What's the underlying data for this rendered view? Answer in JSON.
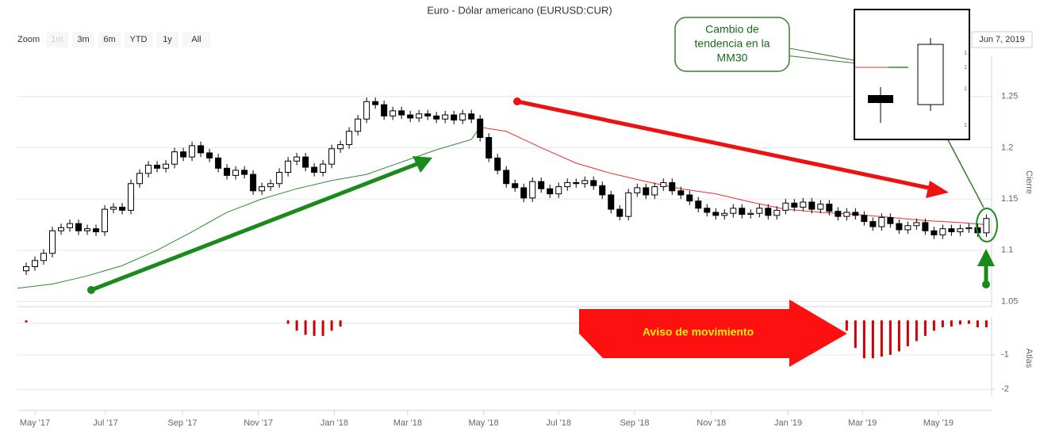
{
  "toolbar": {
    "zoom_label": "Zoom",
    "buttons": [
      "1m",
      "3m",
      "6m",
      "YTD",
      "1y",
      "All"
    ],
    "date": "Jun 7, 2019"
  },
  "chart_data": {
    "type": "candlestick",
    "title": "Euro - Dólar americano (EURUSD:CUR)",
    "y_label": "Cierre",
    "grid": true,
    "up_color": "#ffffff",
    "down_color": "#000000",
    "x": [
      -1,
      0,
      1,
      2,
      3,
      4,
      5,
      6,
      7,
      8,
      9,
      10,
      11,
      12,
      13,
      14,
      15,
      16,
      17,
      18,
      19,
      20,
      21,
      22,
      23,
      24,
      25,
      26,
      27,
      28,
      29,
      30,
      31,
      32,
      33,
      34,
      35,
      36,
      37,
      38,
      39,
      40,
      41,
      42,
      43,
      44,
      45,
      46,
      47,
      48,
      49,
      50,
      51,
      52,
      53,
      54,
      55,
      56,
      57,
      58,
      59,
      60,
      61,
      62,
      63,
      64,
      65,
      66,
      67,
      68,
      69,
      70,
      71,
      72,
      73,
      74,
      75,
      76,
      77,
      78,
      79,
      80,
      81,
      82,
      83,
      84,
      85,
      86,
      87,
      88,
      89,
      90,
      91,
      92,
      93,
      94,
      95,
      96,
      97,
      98,
      99,
      100,
      101,
      102,
      103,
      104,
      105,
      106,
      107,
      108,
      109
    ],
    "open": [
      1.08,
      1.084,
      1.09,
      1.097,
      1.119,
      1.122,
      1.126,
      1.119,
      1.121,
      1.118,
      1.14,
      1.142,
      1.139,
      1.165,
      1.175,
      1.183,
      1.18,
      1.184,
      1.196,
      1.191,
      1.202,
      1.195,
      1.19,
      1.18,
      1.173,
      1.178,
      1.174,
      1.158,
      1.162,
      1.165,
      1.176,
      1.187,
      1.191,
      1.181,
      1.176,
      1.184,
      1.199,
      1.203,
      1.216,
      1.228,
      1.245,
      1.242,
      1.231,
      1.236,
      1.232,
      1.229,
      1.233,
      1.231,
      1.228,
      1.232,
      1.227,
      1.233,
      1.228,
      1.21,
      1.19,
      1.178,
      1.165,
      1.161,
      1.151,
      1.167,
      1.16,
      1.155,
      1.162,
      1.166,
      1.165,
      1.168,
      1.163,
      1.154,
      1.14,
      1.133,
      1.156,
      1.161,
      1.154,
      1.162,
      1.166,
      1.158,
      1.154,
      1.148,
      1.141,
      1.137,
      1.134,
      1.136,
      1.141,
      1.135,
      1.136,
      1.141,
      1.134,
      1.139,
      1.146,
      1.142,
      1.147,
      1.14,
      1.145,
      1.138,
      1.133,
      1.137,
      1.134,
      1.128,
      1.123,
      1.132,
      1.126,
      1.12,
      1.124,
      1.127,
      1.119,
      1.115,
      1.121,
      1.118,
      1.121,
      1.122,
      1.117
    ],
    "high": [
      1.088,
      1.094,
      1.101,
      1.123,
      1.126,
      1.13,
      1.13,
      1.125,
      1.125,
      1.144,
      1.146,
      1.146,
      1.169,
      1.179,
      1.187,
      1.187,
      1.188,
      1.2,
      1.2,
      1.206,
      1.206,
      1.199,
      1.194,
      1.184,
      1.182,
      1.182,
      1.178,
      1.166,
      1.169,
      1.18,
      1.191,
      1.195,
      1.195,
      1.185,
      1.188,
      1.203,
      1.207,
      1.22,
      1.232,
      1.249,
      1.249,
      1.246,
      1.24,
      1.24,
      1.236,
      1.237,
      1.237,
      1.235,
      1.236,
      1.236,
      1.237,
      1.237,
      1.232,
      1.214,
      1.194,
      1.182,
      1.169,
      1.165,
      1.171,
      1.171,
      1.164,
      1.166,
      1.17,
      1.17,
      1.172,
      1.172,
      1.167,
      1.158,
      1.144,
      1.16,
      1.165,
      1.165,
      1.166,
      1.17,
      1.17,
      1.162,
      1.158,
      1.152,
      1.145,
      1.141,
      1.14,
      1.145,
      1.145,
      1.14,
      1.145,
      1.145,
      1.143,
      1.15,
      1.15,
      1.151,
      1.151,
      1.149,
      1.149,
      1.142,
      1.141,
      1.141,
      1.138,
      1.132,
      1.136,
      1.136,
      1.13,
      1.128,
      1.131,
      1.131,
      1.123,
      1.125,
      1.125,
      1.125,
      1.126,
      1.126,
      1.135
    ],
    "low": [
      1.076,
      1.08,
      1.086,
      1.093,
      1.115,
      1.118,
      1.115,
      1.115,
      1.114,
      1.114,
      1.136,
      1.135,
      1.135,
      1.161,
      1.171,
      1.176,
      1.176,
      1.18,
      1.187,
      1.187,
      1.191,
      1.186,
      1.176,
      1.169,
      1.169,
      1.17,
      1.154,
      1.154,
      1.158,
      1.161,
      1.172,
      1.183,
      1.177,
      1.172,
      1.172,
      1.18,
      1.195,
      1.199,
      1.212,
      1.224,
      1.238,
      1.227,
      1.227,
      1.228,
      1.225,
      1.225,
      1.227,
      1.224,
      1.224,
      1.223,
      1.223,
      1.224,
      1.206,
      1.186,
      1.174,
      1.161,
      1.157,
      1.147,
      1.147,
      1.156,
      1.151,
      1.151,
      1.158,
      1.161,
      1.161,
      1.159,
      1.15,
      1.136,
      1.129,
      1.129,
      1.152,
      1.15,
      1.15,
      1.158,
      1.154,
      1.15,
      1.144,
      1.137,
      1.133,
      1.13,
      1.13,
      1.132,
      1.131,
      1.131,
      1.132,
      1.13,
      1.13,
      1.135,
      1.138,
      1.138,
      1.136,
      1.136,
      1.134,
      1.129,
      1.129,
      1.13,
      1.124,
      1.119,
      1.119,
      1.122,
      1.116,
      1.116,
      1.12,
      1.115,
      1.111,
      1.111,
      1.114,
      1.114,
      1.117,
      1.113,
      1.113
    ],
    "close": [
      1.084,
      1.09,
      1.097,
      1.119,
      1.122,
      1.126,
      1.119,
      1.121,
      1.118,
      1.14,
      1.142,
      1.139,
      1.165,
      1.175,
      1.183,
      1.18,
      1.184,
      1.196,
      1.191,
      1.202,
      1.195,
      1.19,
      1.18,
      1.173,
      1.178,
      1.174,
      1.158,
      1.162,
      1.165,
      1.176,
      1.187,
      1.191,
      1.181,
      1.176,
      1.184,
      1.199,
      1.203,
      1.216,
      1.228,
      1.245,
      1.242,
      1.231,
      1.236,
      1.232,
      1.229,
      1.233,
      1.231,
      1.228,
      1.232,
      1.227,
      1.233,
      1.228,
      1.21,
      1.19,
      1.178,
      1.165,
      1.161,
      1.151,
      1.167,
      1.16,
      1.155,
      1.162,
      1.166,
      1.165,
      1.168,
      1.163,
      1.154,
      1.14,
      1.133,
      1.156,
      1.161,
      1.154,
      1.162,
      1.166,
      1.158,
      1.154,
      1.148,
      1.141,
      1.137,
      1.134,
      1.136,
      1.141,
      1.135,
      1.136,
      1.141,
      1.134,
      1.139,
      1.146,
      1.142,
      1.147,
      1.14,
      1.145,
      1.138,
      1.133,
      1.137,
      1.134,
      1.128,
      1.123,
      1.132,
      1.126,
      1.12,
      1.124,
      1.127,
      1.119,
      1.115,
      1.121,
      1.118,
      1.121,
      1.122,
      1.117,
      1.131
    ],
    "moving_average": [
      {
        "color": "#2e8b2e",
        "x": [
          -2,
          2,
          6,
          10,
          14,
          18,
          22,
          26,
          30,
          34,
          38,
          42,
          46,
          50,
          51
        ],
        "values": [
          1.063,
          1.067,
          1.075,
          1.085,
          1.1,
          1.118,
          1.137,
          1.15,
          1.16,
          1.168,
          1.174,
          1.186,
          1.198,
          1.208,
          1.22
        ]
      },
      {
        "color": "#e8312a",
        "x": [
          51,
          54,
          58,
          62,
          66,
          70,
          74,
          78,
          82,
          86,
          90,
          94,
          98,
          102,
          106,
          109
        ],
        "values": [
          1.22,
          1.216,
          1.2,
          1.185,
          1.175,
          1.167,
          1.16,
          1.155,
          1.147,
          1.14,
          1.137,
          1.135,
          1.132,
          1.129,
          1.127,
          1.125
        ]
      }
    ],
    "xlim": [
      -2,
      109.6
    ],
    "xticks": [
      {
        "value": 0,
        "label": "May '17"
      },
      {
        "value": 8.09,
        "label": "Jul '17"
      },
      {
        "value": 16.9,
        "label": "Sep '17"
      },
      {
        "value": 25.6,
        "label": "Nov '17"
      },
      {
        "value": 34.3,
        "label": "Jan '18"
      },
      {
        "value": 42.7,
        "label": "Mar '18"
      },
      {
        "value": 51.4,
        "label": "May '18"
      },
      {
        "value": 60,
        "label": "Jul '18"
      },
      {
        "value": 68.7,
        "label": "Sep '18"
      },
      {
        "value": 77.5,
        "label": "Nov '18"
      },
      {
        "value": 86.3,
        "label": "Jan '19"
      },
      {
        "value": 94.8,
        "label": "Mar '19"
      },
      {
        "value": 103.5,
        "label": "May '19"
      }
    ],
    "ylim": [
      1.045,
      1.29
    ],
    "yticks": [
      1.05,
      1.1,
      1.15,
      1.2,
      1.25
    ],
    "atlas": {
      "label": "Atlas",
      "color": "#cc0000",
      "x": [
        -1,
        29,
        30,
        31,
        32,
        33,
        34,
        35,
        93,
        94,
        95,
        96,
        97,
        98,
        99,
        100,
        101,
        102,
        103,
        104,
        105,
        106,
        107,
        108,
        109
      ],
      "values": [
        -0.06,
        -0.1,
        -0.3,
        -0.42,
        -0.45,
        -0.45,
        -0.3,
        -0.18,
        -0.3,
        -0.8,
        -1.1,
        -1.1,
        -1.05,
        -1.0,
        -0.9,
        -0.75,
        -0.6,
        -0.45,
        -0.3,
        -0.2,
        -0.18,
        -0.12,
        -0.1,
        -0.2,
        -0.2
      ],
      "ylim": [
        -2.2,
        0.1
      ],
      "yticks": [
        -1,
        -2
      ]
    },
    "annotations": {
      "callout": [
        "Cambio de",
        "tendencia en la",
        "MM30"
      ],
      "arrow_text": "Aviso de movimiento",
      "inset_labels": [
        "1",
        "1",
        "1",
        "1"
      ]
    }
  }
}
